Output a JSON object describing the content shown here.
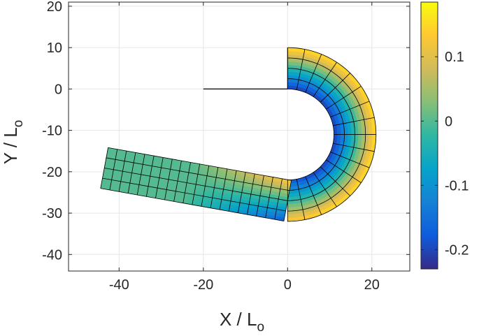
{
  "chart_data": {
    "type": "heatmap",
    "subtype": "deformed beam mesh colored by field value",
    "title": "",
    "xlabel": "X / L",
    "xlabel_subscript": "o",
    "ylabel": "Y / L",
    "ylabel_subscript": "o",
    "xlim": [
      -52,
      29
    ],
    "ylim": [
      -44,
      21
    ],
    "xticks": [
      -40,
      -20,
      0,
      20
    ],
    "xtick_labels": [
      "-40",
      "-20",
      "0",
      "20"
    ],
    "yticks": [
      20,
      10,
      0,
      -10,
      -20,
      -30,
      -40
    ],
    "ytick_labels": [
      "20",
      "10",
      "0",
      "-10",
      "-20",
      "-30",
      "-40"
    ],
    "grid": true,
    "colorbar": {
      "range": [
        -0.23,
        0.185
      ],
      "ticks": [
        0.1,
        0,
        -0.1,
        -0.2
      ],
      "tick_labels": [
        "0.1",
        "0",
        "-0.1",
        "-0.2"
      ],
      "colormap": "parula",
      "colors": [
        "#352a87",
        "#0f5cdd",
        "#1481d6",
        "#06a4ca",
        "#2eb7a4",
        "#87bf77",
        "#d1bb59",
        "#fec832",
        "#f9fb0e"
      ]
    },
    "reference_line": {
      "x": [
        -20,
        0
      ],
      "y": [
        0,
        0
      ],
      "color": "#000000"
    },
    "beam": {
      "width": 10,
      "elements_across": 4,
      "straight_top_length": 0,
      "arc": {
        "center": [
          0,
          -11
        ],
        "inner_radius": 11,
        "outer_radius": 21,
        "start_angle_deg": 90,
        "sweep_deg": 180,
        "elements_along": 16
      },
      "tail": {
        "start_center": [
          0,
          -32
        ],
        "end_center": [
          -43.5,
          -19.1
        ],
        "elements_along": 20
      },
      "field_endpoints": {
        "inner_edge_arc": -0.21,
        "outer_edge_arc": 0.16,
        "tail_end": 0.0
      }
    }
  }
}
